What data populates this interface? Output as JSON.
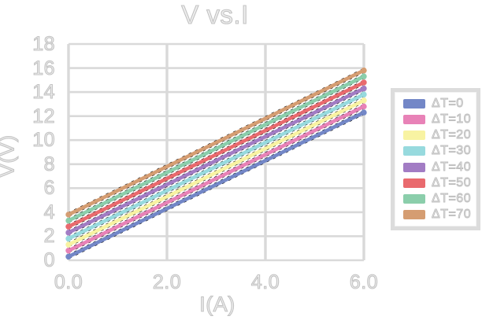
{
  "title": "V vs.I",
  "axes": {
    "x": {
      "label": "I(A)",
      "tick_labels": [
        "0.0",
        "2.0",
        "4.0",
        "6.0"
      ],
      "min": 0,
      "max": 6
    },
    "y": {
      "label": "V(V)",
      "tick_labels": [
        "18",
        "16",
        "14",
        "12",
        "10",
        "8",
        "6",
        "4",
        "2",
        "0"
      ],
      "min": 0,
      "max": 18
    }
  },
  "legend": {
    "position": "right",
    "entries": [
      {
        "label": "ΔT=0",
        "color": "#7387c7"
      },
      {
        "label": "ΔT=10",
        "color": "#e882b7"
      },
      {
        "label": "ΔT=20",
        "color": "#f8f3a2"
      },
      {
        "label": "ΔT=30",
        "color": "#97dade"
      },
      {
        "label": "ΔT=40",
        "color": "#a27cc4"
      },
      {
        "label": "ΔT=50",
        "color": "#e96a6e"
      },
      {
        "label": "ΔT=60",
        "color": "#8bceab"
      },
      {
        "label": "ΔT=70",
        "color": "#d59d72"
      }
    ]
  },
  "style_colors": {
    "gridline": "#d9d9d9",
    "trendline": "#000000",
    "hollow_text_stroke": "#c3c3c3"
  },
  "chart_data": {
    "type": "line",
    "title": "V vs.I",
    "xlabel": "I(A)",
    "ylabel": "V(V)",
    "xlim": [
      0,
      6
    ],
    "ylim": [
      0,
      18
    ],
    "x_ticks": [
      0,
      2,
      4,
      6
    ],
    "y_ticks": [
      0,
      2,
      4,
      6,
      8,
      10,
      12,
      14,
      16,
      18
    ],
    "grid": true,
    "legend_position": "right",
    "x": [
      0,
      6
    ],
    "series": [
      {
        "name": "ΔT=0",
        "color": "#7387c7",
        "values": [
          0.3,
          12.3
        ]
      },
      {
        "name": "ΔT=10",
        "color": "#e882b7",
        "values": [
          0.8,
          12.8
        ]
      },
      {
        "name": "ΔT=20",
        "color": "#f8f3a2",
        "values": [
          1.3,
          13.3
        ]
      },
      {
        "name": "ΔT=30",
        "color": "#97dade",
        "values": [
          1.8,
          13.8
        ]
      },
      {
        "name": "ΔT=40",
        "color": "#a27cc4",
        "values": [
          2.3,
          14.3
        ]
      },
      {
        "name": "ΔT=50",
        "color": "#e96a6e",
        "values": [
          2.8,
          14.8
        ]
      },
      {
        "name": "ΔT=60",
        "color": "#8bceab",
        "values": [
          3.3,
          15.3
        ]
      },
      {
        "name": "ΔT=70",
        "color": "#d59d72",
        "values": [
          3.8,
          15.8
        ]
      }
    ],
    "has_black_dashed_trendlines": true,
    "note": "Parallel lines V = 2*I + 0.3 + 0.05*ΔT, endpoints marked with round dots"
  }
}
